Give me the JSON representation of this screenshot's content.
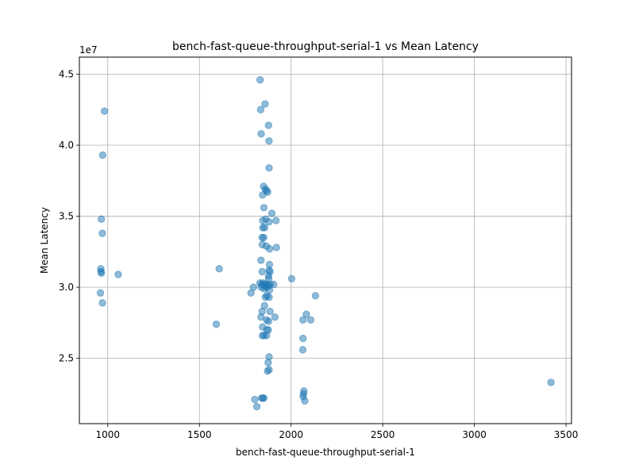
{
  "chart_data": {
    "type": "scatter",
    "title": "bench-fast-queue-throughput-serial-1 vs Mean Latency",
    "xlabel": "bench-fast-queue-throughput-serial-1",
    "ylabel": "Mean Latency",
    "y_offset_label": "1e7",
    "xlim": [
      845,
      3530
    ],
    "ylim": [
      20400000,
      46200000
    ],
    "x_ticks": [
      1000,
      1500,
      2000,
      2500,
      3000,
      3500
    ],
    "x_tick_labels": [
      "1000",
      "1500",
      "2000",
      "2500",
      "3000",
      "3500"
    ],
    "y_ticks": [
      25000000,
      30000000,
      35000000,
      40000000,
      45000000
    ],
    "y_tick_labels": [
      "2.5",
      "3.0",
      "3.5",
      "4.0",
      "4.5"
    ],
    "grid": true,
    "marker_color": "#1f77b4",
    "marker_alpha": 0.5,
    "points": [
      {
        "x": 982,
        "y": 42400000
      },
      {
        "x": 972,
        "y": 39300000
      },
      {
        "x": 965,
        "y": 34800000
      },
      {
        "x": 970,
        "y": 33800000
      },
      {
        "x": 962,
        "y": 31300000
      },
      {
        "x": 963,
        "y": 31100000
      },
      {
        "x": 965,
        "y": 31000000
      },
      {
        "x": 960,
        "y": 29600000
      },
      {
        "x": 971,
        "y": 28900000
      },
      {
        "x": 1057,
        "y": 30900000
      },
      {
        "x": 1608,
        "y": 31300000
      },
      {
        "x": 1592,
        "y": 27400000
      },
      {
        "x": 1831,
        "y": 44600000
      },
      {
        "x": 1858,
        "y": 42900000
      },
      {
        "x": 1834,
        "y": 42500000
      },
      {
        "x": 1877,
        "y": 41400000
      },
      {
        "x": 1837,
        "y": 40800000
      },
      {
        "x": 1880,
        "y": 40300000
      },
      {
        "x": 1880,
        "y": 38400000
      },
      {
        "x": 1850,
        "y": 37100000
      },
      {
        "x": 1860,
        "y": 36900000
      },
      {
        "x": 1866,
        "y": 36800000
      },
      {
        "x": 1872,
        "y": 36700000
      },
      {
        "x": 1845,
        "y": 36500000
      },
      {
        "x": 1852,
        "y": 35600000
      },
      {
        "x": 1895,
        "y": 35200000
      },
      {
        "x": 1845,
        "y": 34700000
      },
      {
        "x": 1862,
        "y": 34800000
      },
      {
        "x": 1880,
        "y": 34600000
      },
      {
        "x": 1918,
        "y": 34700000
      },
      {
        "x": 1846,
        "y": 34200000
      },
      {
        "x": 1856,
        "y": 34200000
      },
      {
        "x": 1842,
        "y": 33500000
      },
      {
        "x": 1851,
        "y": 33500000
      },
      {
        "x": 1843,
        "y": 33000000
      },
      {
        "x": 1865,
        "y": 32900000
      },
      {
        "x": 1883,
        "y": 32700000
      },
      {
        "x": 1920,
        "y": 32800000
      },
      {
        "x": 1836,
        "y": 31900000
      },
      {
        "x": 1882,
        "y": 31600000
      },
      {
        "x": 1842,
        "y": 31100000
      },
      {
        "x": 1880,
        "y": 31200000
      },
      {
        "x": 1885,
        "y": 31100000
      },
      {
        "x": 1877,
        "y": 30800000
      },
      {
        "x": 1878,
        "y": 30600000
      },
      {
        "x": 2003,
        "y": 30600000
      },
      {
        "x": 1830,
        "y": 30300000
      },
      {
        "x": 1840,
        "y": 30200000
      },
      {
        "x": 1848,
        "y": 30300000
      },
      {
        "x": 1855,
        "y": 30200000
      },
      {
        "x": 1862,
        "y": 30100000
      },
      {
        "x": 1871,
        "y": 30200000
      },
      {
        "x": 1878,
        "y": 30100000
      },
      {
        "x": 1886,
        "y": 30200000
      },
      {
        "x": 1905,
        "y": 30200000
      },
      {
        "x": 1795,
        "y": 30000000
      },
      {
        "x": 1838,
        "y": 30000000
      },
      {
        "x": 1853,
        "y": 29900000
      },
      {
        "x": 1866,
        "y": 30000000
      },
      {
        "x": 1882,
        "y": 29800000
      },
      {
        "x": 1781,
        "y": 29600000
      },
      {
        "x": 1860,
        "y": 29300000
      },
      {
        "x": 1868,
        "y": 29400000
      },
      {
        "x": 1880,
        "y": 29300000
      },
      {
        "x": 2133,
        "y": 29400000
      },
      {
        "x": 1855,
        "y": 28700000
      },
      {
        "x": 1842,
        "y": 28300000
      },
      {
        "x": 1885,
        "y": 28300000
      },
      {
        "x": 2083,
        "y": 28100000
      },
      {
        "x": 1836,
        "y": 27900000
      },
      {
        "x": 1912,
        "y": 27900000
      },
      {
        "x": 1867,
        "y": 27700000
      },
      {
        "x": 1877,
        "y": 27600000
      },
      {
        "x": 2065,
        "y": 27700000
      },
      {
        "x": 2107,
        "y": 27700000
      },
      {
        "x": 1845,
        "y": 27200000
      },
      {
        "x": 1868,
        "y": 27000000
      },
      {
        "x": 1876,
        "y": 27000000
      },
      {
        "x": 1844,
        "y": 26600000
      },
      {
        "x": 1852,
        "y": 26600000
      },
      {
        "x": 1866,
        "y": 26600000
      },
      {
        "x": 2065,
        "y": 26400000
      },
      {
        "x": 2064,
        "y": 25600000
      },
      {
        "x": 1880,
        "y": 25100000
      },
      {
        "x": 1875,
        "y": 24700000
      },
      {
        "x": 1880,
        "y": 24200000
      },
      {
        "x": 1872,
        "y": 24100000
      },
      {
        "x": 2070,
        "y": 22700000
      },
      {
        "x": 2068,
        "y": 22500000
      },
      {
        "x": 2066,
        "y": 22300000
      },
      {
        "x": 2075,
        "y": 22000000
      },
      {
        "x": 1840,
        "y": 22200000
      },
      {
        "x": 1852,
        "y": 22200000
      },
      {
        "x": 1845,
        "y": 22200000
      },
      {
        "x": 1802,
        "y": 22100000
      },
      {
        "x": 1813,
        "y": 21600000
      },
      {
        "x": 3418,
        "y": 23300000
      }
    ]
  }
}
